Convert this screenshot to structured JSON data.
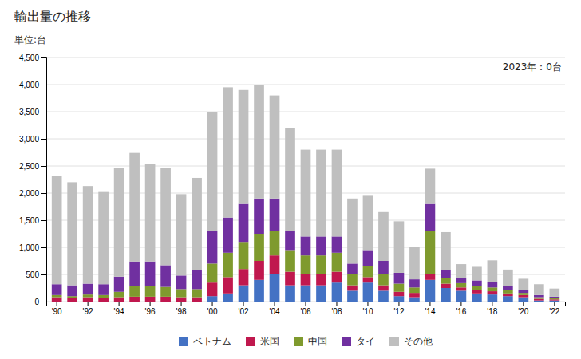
{
  "chart_data": {
    "type": "bar",
    "stacked": true,
    "title": "輸出量の推移",
    "subtitle": "単位:台",
    "annotation": "2023年：0台",
    "categories": [
      "'90",
      null,
      "'92",
      null,
      "'94",
      null,
      "'96",
      null,
      "'98",
      null,
      "'00",
      null,
      "'02",
      null,
      "'04",
      null,
      "'06",
      null,
      "'08",
      null,
      "'10",
      null,
      "'12",
      null,
      "'14",
      null,
      "'16",
      null,
      "'18",
      null,
      "'20",
      null,
      "'22"
    ],
    "series": [
      {
        "name": "ベトナム",
        "color": "#4472c4",
        "values": [
          0,
          0,
          0,
          0,
          0,
          0,
          0,
          0,
          0,
          0,
          100,
          150,
          300,
          400,
          500,
          300,
          300,
          300,
          350,
          200,
          350,
          200,
          100,
          80,
          400,
          250,
          200,
          150,
          130,
          100,
          80,
          20,
          20
        ]
      },
      {
        "name": "米国",
        "color": "#c0184e",
        "values": [
          80,
          70,
          80,
          70,
          80,
          90,
          90,
          90,
          80,
          80,
          250,
          300,
          300,
          350,
          350,
          250,
          200,
          200,
          200,
          100,
          100,
          100,
          80,
          80,
          100,
          80,
          60,
          60,
          60,
          50,
          40,
          30,
          20
        ]
      },
      {
        "name": "中国",
        "color": "#7f9a2e",
        "values": [
          40,
          30,
          50,
          50,
          100,
          200,
          200,
          180,
          150,
          150,
          350,
          450,
          500,
          500,
          450,
          400,
          350,
          350,
          350,
          200,
          200,
          200,
          150,
          100,
          800,
          100,
          80,
          80,
          70,
          60,
          40,
          30,
          20
        ]
      },
      {
        "name": "タイ",
        "color": "#7030a0",
        "values": [
          200,
          200,
          200,
          200,
          280,
          450,
          450,
          400,
          250,
          350,
          600,
          650,
          700,
          650,
          600,
          350,
          350,
          350,
          300,
          200,
          300,
          250,
          200,
          150,
          500,
          150,
          100,
          100,
          100,
          80,
          60,
          40,
          30
        ]
      },
      {
        "name": "その他",
        "color": "#bfbfbf",
        "values": [
          2000,
          1900,
          1800,
          1700,
          2000,
          2000,
          1800,
          1800,
          1500,
          1700,
          2200,
          2400,
          2100,
          2100,
          1900,
          1900,
          1600,
          1600,
          1600,
          1200,
          1000,
          900,
          950,
          600,
          650,
          700,
          250,
          250,
          400,
          300,
          200,
          200,
          150
        ]
      }
    ],
    "ylim": [
      0,
      4500
    ],
    "yticks": [
      0,
      500,
      {
        "value": 1000,
        "label": "1,000"
      },
      {
        "value": 1500,
        "label": "1,500"
      },
      {
        "value": 2000,
        "label": "2,000"
      },
      {
        "value": 2500,
        "label": "2,500"
      },
      {
        "value": 3000,
        "label": "3,000"
      },
      {
        "value": 3500,
        "label": "3,500"
      },
      {
        "value": 4000,
        "label": "4,000"
      },
      {
        "value": 4500,
        "label": "4,500"
      }
    ],
    "grid": true,
    "legend": "bottom"
  }
}
